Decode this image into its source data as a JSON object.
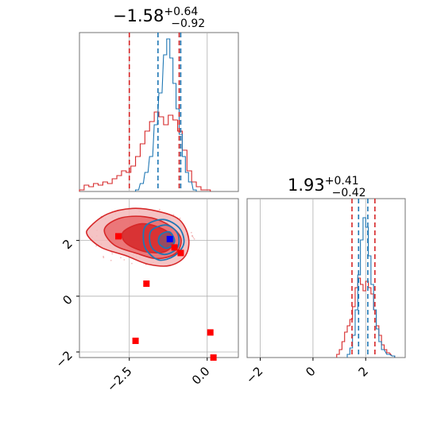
{
  "chart_data": {
    "type": "corner",
    "titles": [
      {
        "value": "−1.58",
        "plus": "+0.64",
        "minus": "−0.92"
      },
      {
        "value": "1.93",
        "plus": "+0.41",
        "minus": "−0.42"
      }
    ],
    "x_range": [
      -4.1,
      1.0
    ],
    "y_range": [
      -2.2,
      3.5
    ],
    "x_ticks": [
      {
        "value": -2.5,
        "label": "−2.5"
      },
      {
        "value": 0.0,
        "label": "0.0"
      }
    ],
    "y_ticks": [
      {
        "value": -2,
        "label": "−2"
      },
      {
        "value": 0,
        "label": "0"
      },
      {
        "value": 2,
        "label": "2"
      }
    ],
    "marg2_ticks": [
      {
        "value": -2,
        "label": "−2"
      },
      {
        "value": 0,
        "label": "0"
      },
      {
        "value": 2,
        "label": "2"
      }
    ],
    "grid": true,
    "colors": {
      "blue": "#1f77b4",
      "red": "#d62728",
      "marker": "#ff0000",
      "truth": "#0000ff"
    },
    "quantiles_red": {
      "param1": [
        -2.5,
        -0.9
      ],
      "param2": [
        1.48,
        2.35
      ]
    },
    "quantiles_blue": {
      "param1": [
        -1.58,
        -0.85
      ],
      "param2": [
        1.73,
        2.08
      ]
    },
    "histogram_bins_red_p1": [
      {
        "x": -4.1,
        "y": 0.01
      },
      {
        "x": -3.95,
        "y": 0.04
      },
      {
        "x": -3.8,
        "y": 0.03
      },
      {
        "x": -3.65,
        "y": 0.05
      },
      {
        "x": -3.5,
        "y": 0.04
      },
      {
        "x": -3.35,
        "y": 0.06
      },
      {
        "x": -3.2,
        "y": 0.05
      },
      {
        "x": -3.05,
        "y": 0.08
      },
      {
        "x": -2.9,
        "y": 0.1
      },
      {
        "x": -2.75,
        "y": 0.13
      },
      {
        "x": -2.6,
        "y": 0.12
      },
      {
        "x": -2.45,
        "y": 0.16
      },
      {
        "x": -2.3,
        "y": 0.22
      },
      {
        "x": -2.15,
        "y": 0.3
      },
      {
        "x": -2.0,
        "y": 0.38
      },
      {
        "x": -1.85,
        "y": 0.44
      },
      {
        "x": -1.7,
        "y": 0.5
      },
      {
        "x": -1.55,
        "y": 0.47
      },
      {
        "x": -1.4,
        "y": 0.42
      },
      {
        "x": -1.25,
        "y": 0.48
      },
      {
        "x": -1.1,
        "y": 0.45
      },
      {
        "x": -0.95,
        "y": 0.38
      },
      {
        "x": -0.8,
        "y": 0.26
      },
      {
        "x": -0.65,
        "y": 0.13
      },
      {
        "x": -0.5,
        "y": 0.06
      },
      {
        "x": -0.35,
        "y": 0.03
      },
      {
        "x": -0.2,
        "y": 0.01
      },
      {
        "x": -0.05,
        "y": 0.01
      }
    ],
    "histogram_bins_blue_p1": [
      {
        "x": -2.3,
        "y": 0.01
      },
      {
        "x": -2.15,
        "y": 0.05
      },
      {
        "x": -2.0,
        "y": 0.12
      },
      {
        "x": -1.85,
        "y": 0.22
      },
      {
        "x": -1.7,
        "y": 0.42
      },
      {
        "x": -1.55,
        "y": 0.62
      },
      {
        "x": -1.4,
        "y": 0.86
      },
      {
        "x": -1.3,
        "y": 0.96
      },
      {
        "x": -1.2,
        "y": 0.84
      },
      {
        "x": -1.1,
        "y": 0.68
      },
      {
        "x": -1.0,
        "y": 0.52
      },
      {
        "x": -0.9,
        "y": 0.36
      },
      {
        "x": -0.8,
        "y": 0.22
      },
      {
        "x": -0.7,
        "y": 0.12
      },
      {
        "x": -0.6,
        "y": 0.06
      },
      {
        "x": -0.45,
        "y": 0.01
      }
    ],
    "histogram_bins_red_p2": [
      {
        "x": 0.9,
        "y": 0.02
      },
      {
        "x": 1.0,
        "y": 0.05
      },
      {
        "x": 1.1,
        "y": 0.1
      },
      {
        "x": 1.2,
        "y": 0.16
      },
      {
        "x": 1.3,
        "y": 0.2
      },
      {
        "x": 1.4,
        "y": 0.24
      },
      {
        "x": 1.5,
        "y": 0.32
      },
      {
        "x": 1.6,
        "y": 0.44
      },
      {
        "x": 1.7,
        "y": 0.5
      },
      {
        "x": 1.8,
        "y": 0.46
      },
      {
        "x": 1.9,
        "y": 0.42
      },
      {
        "x": 2.0,
        "y": 0.48
      },
      {
        "x": 2.1,
        "y": 0.44
      },
      {
        "x": 2.2,
        "y": 0.4
      },
      {
        "x": 2.3,
        "y": 0.3
      },
      {
        "x": 2.4,
        "y": 0.2
      },
      {
        "x": 2.5,
        "y": 0.14
      },
      {
        "x": 2.6,
        "y": 0.08
      },
      {
        "x": 2.7,
        "y": 0.05
      },
      {
        "x": 2.8,
        "y": 0.03
      },
      {
        "x": 3.0,
        "y": 0.01
      }
    ],
    "histogram_bins_blue_p2": [
      {
        "x": 1.3,
        "y": 0.02
      },
      {
        "x": 1.4,
        "y": 0.06
      },
      {
        "x": 1.5,
        "y": 0.14
      },
      {
        "x": 1.6,
        "y": 0.3
      },
      {
        "x": 1.7,
        "y": 0.52
      },
      {
        "x": 1.8,
        "y": 0.74
      },
      {
        "x": 1.9,
        "y": 0.88
      },
      {
        "x": 2.0,
        "y": 0.82
      },
      {
        "x": 2.1,
        "y": 0.64
      },
      {
        "x": 2.2,
        "y": 0.46
      },
      {
        "x": 2.3,
        "y": 0.3
      },
      {
        "x": 2.4,
        "y": 0.18
      },
      {
        "x": 2.5,
        "y": 0.1
      },
      {
        "x": 2.6,
        "y": 0.05
      },
      {
        "x": 2.8,
        "y": 0.02
      },
      {
        "x": 3.0,
        "y": 0.01
      }
    ],
    "red_contours": [
      [
        [
          -3.75,
          2.5
        ],
        [
          -3.2,
          2.95
        ],
        [
          -2.4,
          3.15
        ],
        [
          -1.6,
          3.05
        ],
        [
          -0.9,
          2.75
        ],
        [
          -0.6,
          2.1
        ],
        [
          -0.7,
          1.45
        ],
        [
          -1.2,
          1.1
        ],
        [
          -1.9,
          1.15
        ],
        [
          -2.6,
          1.45
        ],
        [
          -3.4,
          1.75
        ],
        [
          -3.85,
          2.2
        ]
      ],
      [
        [
          -3.3,
          2.4
        ],
        [
          -2.8,
          2.8
        ],
        [
          -2.0,
          2.85
        ],
        [
          -1.3,
          2.6
        ],
        [
          -0.85,
          2.1
        ],
        [
          -1.0,
          1.55
        ],
        [
          -1.6,
          1.35
        ],
        [
          -2.3,
          1.55
        ],
        [
          -3.0,
          1.85
        ]
      ],
      [
        [
          -2.7,
          2.3
        ],
        [
          -2.1,
          2.6
        ],
        [
          -1.4,
          2.4
        ],
        [
          -1.05,
          2.0
        ],
        [
          -1.35,
          1.6
        ],
        [
          -2.0,
          1.6
        ],
        [
          -2.6,
          1.9
        ]
      ]
    ],
    "blue_contours": [
      [
        [
          -1.95,
          2.55
        ],
        [
          -1.4,
          2.75
        ],
        [
          -0.9,
          2.45
        ],
        [
          -0.75,
          1.9
        ],
        [
          -1.05,
          1.45
        ],
        [
          -1.55,
          1.3
        ],
        [
          -1.95,
          1.65
        ],
        [
          -2.05,
          2.1
        ]
      ],
      [
        [
          -1.75,
          2.4
        ],
        [
          -1.3,
          2.55
        ],
        [
          -0.95,
          2.25
        ],
        [
          -0.95,
          1.75
        ],
        [
          -1.35,
          1.5
        ],
        [
          -1.75,
          1.7
        ],
        [
          -1.85,
          2.1
        ]
      ],
      [
        [
          -1.5,
          2.2
        ],
        [
          -1.2,
          2.3
        ],
        [
          -1.05,
          1.95
        ],
        [
          -1.3,
          1.72
        ],
        [
          -1.55,
          1.9
        ]
      ]
    ],
    "red_markers": [
      {
        "x": -2.85,
        "y": 2.15
      },
      {
        "x": -1.05,
        "y": 1.75
      },
      {
        "x": -0.85,
        "y": 1.55
      },
      {
        "x": -1.95,
        "y": 0.45
      },
      {
        "x": -2.3,
        "y": -1.6
      },
      {
        "x": 0.1,
        "y": -1.3
      },
      {
        "x": 0.2,
        "y": -2.2
      }
    ],
    "truth_marker": {
      "x": -1.2,
      "y": 2.05
    }
  }
}
